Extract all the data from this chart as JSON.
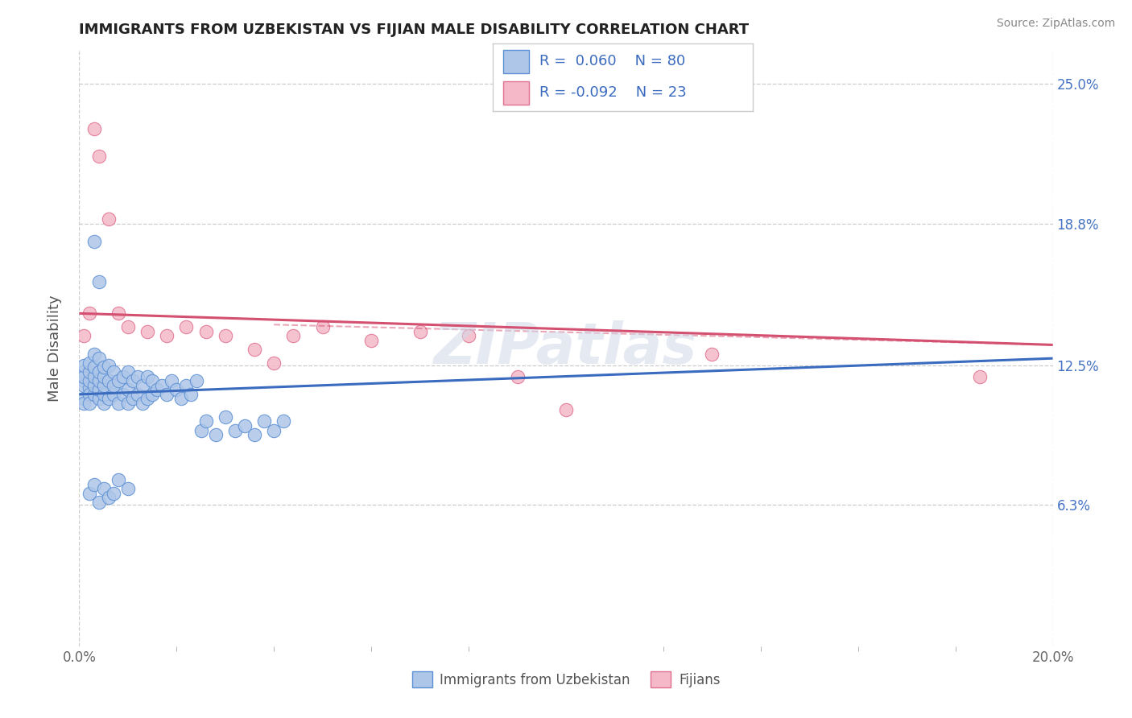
{
  "title": "IMMIGRANTS FROM UZBEKISTAN VS FIJIAN MALE DISABILITY CORRELATION CHART",
  "source": "Source: ZipAtlas.com",
  "ylabel": "Male Disability",
  "legend_label1": "Immigrants from Uzbekistan",
  "legend_label2": "Fijians",
  "r1": 0.06,
  "n1": 80,
  "r2": -0.092,
  "n2": 23,
  "color1": "#aec6e8",
  "color2": "#f4b8c8",
  "edge_color1": "#5b8fd4",
  "edge_color2": "#e07090",
  "line_color1": "#3a6bbf",
  "line_color2": "#d45070",
  "background_color": "#ffffff",
  "grid_color": "#cccccc",
  "xlim": [
    0.0,
    0.2
  ],
  "ylim": [
    0.0,
    0.265
  ],
  "yticks": [
    0.063,
    0.125,
    0.188,
    0.25
  ],
  "ytick_labels": [
    "6.3%",
    "12.5%",
    "18.8%",
    "25.0%"
  ],
  "xticks": [
    0.0,
    0.1,
    0.2
  ],
  "xtick_labels": [
    "0.0%",
    "",
    "20.0%"
  ],
  "title_color": "#222222",
  "source_color": "#888888",
  "tick_color": "#666666",
  "watermark": "ZIPatlas",
  "blue_x": [
    0.001,
    0.001,
    0.001,
    0.001,
    0.001,
    0.001,
    0.001,
    0.002,
    0.002,
    0.002,
    0.002,
    0.002,
    0.002,
    0.003,
    0.003,
    0.003,
    0.003,
    0.003,
    0.004,
    0.004,
    0.004,
    0.004,
    0.004,
    0.005,
    0.005,
    0.005,
    0.005,
    0.005,
    0.006,
    0.006,
    0.006,
    0.007,
    0.007,
    0.007,
    0.008,
    0.008,
    0.009,
    0.009,
    0.01,
    0.01,
    0.01,
    0.011,
    0.011,
    0.012,
    0.012,
    0.013,
    0.013,
    0.014,
    0.014,
    0.015,
    0.015,
    0.016,
    0.017,
    0.018,
    0.019,
    0.02,
    0.021,
    0.022,
    0.023,
    0.024,
    0.025,
    0.026,
    0.028,
    0.03,
    0.032,
    0.034,
    0.036,
    0.038,
    0.04,
    0.042,
    0.002,
    0.003,
    0.004,
    0.005,
    0.006,
    0.007,
    0.008,
    0.01,
    0.003,
    0.004
  ],
  "blue_y": [
    0.11,
    0.118,
    0.122,
    0.108,
    0.116,
    0.12,
    0.125,
    0.115,
    0.112,
    0.108,
    0.118,
    0.122,
    0.126,
    0.112,
    0.116,
    0.12,
    0.124,
    0.13,
    0.11,
    0.114,
    0.118,
    0.122,
    0.128,
    0.108,
    0.112,
    0.116,
    0.12,
    0.124,
    0.11,
    0.118,
    0.125,
    0.112,
    0.116,
    0.122,
    0.108,
    0.118,
    0.112,
    0.12,
    0.108,
    0.114,
    0.122,
    0.11,
    0.118,
    0.112,
    0.12,
    0.108,
    0.116,
    0.11,
    0.12,
    0.112,
    0.118,
    0.114,
    0.116,
    0.112,
    0.118,
    0.114,
    0.11,
    0.116,
    0.112,
    0.118,
    0.096,
    0.1,
    0.094,
    0.102,
    0.096,
    0.098,
    0.094,
    0.1,
    0.096,
    0.1,
    0.068,
    0.072,
    0.064,
    0.07,
    0.066,
    0.068,
    0.074,
    0.07,
    0.18,
    0.162
  ],
  "pink_x": [
    0.001,
    0.002,
    0.003,
    0.004,
    0.006,
    0.008,
    0.01,
    0.014,
    0.018,
    0.022,
    0.026,
    0.03,
    0.036,
    0.04,
    0.044,
    0.05,
    0.06,
    0.07,
    0.08,
    0.09,
    0.1,
    0.13,
    0.185
  ],
  "pink_y": [
    0.138,
    0.148,
    0.23,
    0.218,
    0.19,
    0.148,
    0.142,
    0.14,
    0.138,
    0.142,
    0.14,
    0.138,
    0.132,
    0.126,
    0.138,
    0.142,
    0.136,
    0.14,
    0.138,
    0.12,
    0.105,
    0.13,
    0.12
  ],
  "line1_x0": 0.0,
  "line1_y0": 0.112,
  "line1_x1": 0.2,
  "line1_y1": 0.128,
  "line2_x0": 0.0,
  "line2_y0": 0.148,
  "line2_x1": 0.2,
  "line2_y1": 0.134
}
